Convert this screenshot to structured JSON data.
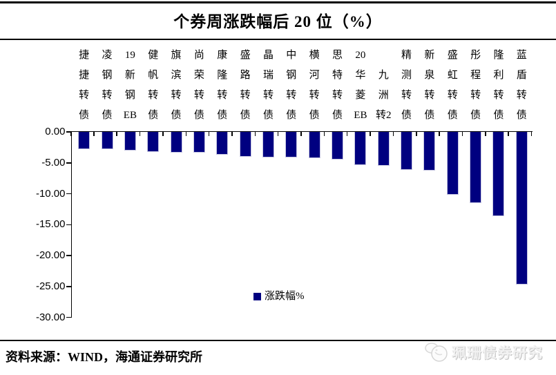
{
  "title": "个券周涨跌幅后 20 位（%）",
  "legend": {
    "label": "涨跌幅%",
    "swatch_color": "#000080"
  },
  "footer": {
    "source": "资料来源：WIND，海通证券研究所",
    "brand": "珮珊债券研究"
  },
  "colors": {
    "bar_fill": "#000080",
    "bar_edge": "#c4c4e0",
    "axis": "#000000",
    "background": "#ffffff"
  },
  "chart_data": {
    "type": "bar",
    "title": "个券周涨跌幅后 20 位（%）",
    "legend_entries": [
      "涨跌幅%"
    ],
    "orientation": "vertical",
    "grid": false,
    "ylim": [
      -30,
      0
    ],
    "ytick_labels": [
      "0.00",
      "-5.00",
      "-10.00",
      "-15.00",
      "-20.00",
      "-25.00",
      "-30.00"
    ],
    "ytick_values": [
      0,
      -5,
      -10,
      -15,
      -20,
      -25,
      -30
    ],
    "categories": [
      "捷捷转债",
      "凌钢转债",
      "19新钢EB",
      "健帆转债",
      "旗滨转债",
      "尚荣转债",
      "康隆转债",
      "盛路转债",
      "晶瑞转债",
      "中钢转债",
      "横河转债",
      "思特转债",
      "20华菱EB",
      "九洲转2",
      "精测转债",
      "新泉转债",
      "盛虹转债",
      "彤程转债",
      "隆利转债",
      "蓝盾转债"
    ],
    "category_lines": [
      [
        "捷",
        "捷",
        "转",
        "债"
      ],
      [
        "凌",
        "钢",
        "转",
        "债"
      ],
      [
        "19",
        "新",
        "钢",
        "EB"
      ],
      [
        "健",
        "帆",
        "转",
        "债"
      ],
      [
        "旗",
        "滨",
        "转",
        "债"
      ],
      [
        "尚",
        "荣",
        "转",
        "债"
      ],
      [
        "康",
        "隆",
        "转",
        "债"
      ],
      [
        "盛",
        "路",
        "转",
        "债"
      ],
      [
        "晶",
        "瑞",
        "转",
        "债"
      ],
      [
        "中",
        "钢",
        "转",
        "债"
      ],
      [
        "横",
        "河",
        "转",
        "债"
      ],
      [
        "思",
        "特",
        "转",
        "债"
      ],
      [
        "20",
        "华",
        "菱",
        "EB"
      ],
      [
        "九",
        "洲",
        "转2"
      ],
      [
        "精",
        "测",
        "转",
        "债"
      ],
      [
        "新",
        "泉",
        "转",
        "债"
      ],
      [
        "盛",
        "虹",
        "转",
        "债"
      ],
      [
        "彤",
        "程",
        "转",
        "债"
      ],
      [
        "隆",
        "利",
        "转",
        "债"
      ],
      [
        "蓝",
        "盾",
        "转",
        "债"
      ]
    ],
    "values": [
      -2.8,
      -2.8,
      -3.0,
      -3.2,
      -3.4,
      -3.4,
      -3.7,
      -4.0,
      -4.1,
      -4.1,
      -4.2,
      -4.5,
      -5.4,
      -5.5,
      -6.2,
      -6.3,
      -10.2,
      -11.5,
      -13.6,
      -24.7
    ],
    "series_name": "涨跌幅%"
  }
}
